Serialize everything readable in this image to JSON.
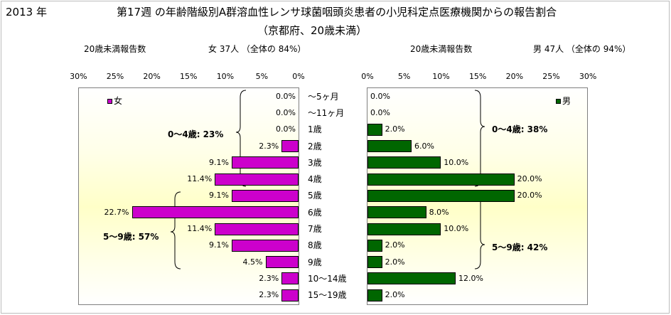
{
  "header": {
    "year": "2013 年",
    "title_line1": "第17週 の年齢階級別A群溶血性レンサ球菌咽頭炎患者の小児科定点医療機関からの報告割合",
    "title_line2": "（京都府、20歳未満）"
  },
  "left_panel": {
    "count_label": "20歳未満報告数",
    "sex_summary": "女  37人 （全体の  84%）",
    "legend": "女",
    "group_labels": [
      "0～4歳: 23%",
      "5～9歳: 57%"
    ]
  },
  "right_panel": {
    "count_label": "20歳未満報告数",
    "sex_summary": "男  47人 （全体の  94%）",
    "legend": "男",
    "group_labels": [
      "0～4歳: 38%",
      "5～9歳: 42%"
    ]
  },
  "colors": {
    "female": "#cc00cc",
    "male": "#006600"
  },
  "chart_data": [
    {
      "type": "bar",
      "orientation": "horizontal",
      "direction": "right-to-left",
      "series": [
        {
          "name": "女",
          "values": [
            0.0,
            0.0,
            0.0,
            2.3,
            9.1,
            11.4,
            9.1,
            22.7,
            11.4,
            9.1,
            4.5,
            2.3,
            2.3
          ]
        }
      ],
      "value_labels": [
        "0.0%",
        "0.0%",
        "0.0%",
        "2.3%",
        "9.1%",
        "11.4%",
        "9.1%",
        "22.7%",
        "11.4%",
        "9.1%",
        "4.5%",
        "2.3%",
        "2.3%"
      ],
      "categories": [
        "～5ヶ月",
        "～11ヶ月",
        "1歳",
        "2歳",
        "3歳",
        "4歳",
        "5歳",
        "6歳",
        "7歳",
        "8歳",
        "9歳",
        "10～14歳",
        "15～19歳"
      ],
      "xlim": [
        0,
        30
      ],
      "xticks": [
        "30%",
        "25%",
        "20%",
        "15%",
        "10%",
        "5%",
        "0%"
      ],
      "legend_position": "top-left"
    },
    {
      "type": "bar",
      "orientation": "horizontal",
      "direction": "left-to-right",
      "series": [
        {
          "name": "男",
          "values": [
            0.0,
            0.0,
            2.0,
            6.0,
            10.0,
            20.0,
            20.0,
            8.0,
            10.0,
            2.0,
            2.0,
            12.0,
            2.0
          ]
        }
      ],
      "value_labels": [
        "0.0%",
        "0.0%",
        "2.0%",
        "6.0%",
        "10.0%",
        "20.0%",
        "20.0%",
        "8.0%",
        "10.0%",
        "2.0%",
        "2.0%",
        "12.0%",
        "2.0%"
      ],
      "categories": [
        "～5ヶ月",
        "～11ヶ月",
        "1歳",
        "2歳",
        "3歳",
        "4歳",
        "5歳",
        "6歳",
        "7歳",
        "8歳",
        "9歳",
        "10～14歳",
        "15～19歳"
      ],
      "xlim": [
        0,
        30
      ],
      "xticks": [
        "0%",
        "5%",
        "10%",
        "15%",
        "20%",
        "25%",
        "30%"
      ],
      "legend_position": "top-right"
    }
  ]
}
